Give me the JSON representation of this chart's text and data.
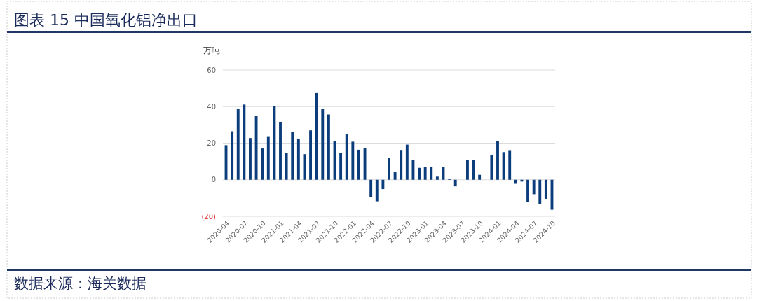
{
  "chart_data": {
    "type": "bar",
    "title": "图表 15 中国氧化铝净出口",
    "ylabel": "万吨",
    "annotations": [
      "数据来源：海关数据"
    ],
    "categories": [
      "2020-04",
      null,
      null,
      "2020-07",
      null,
      null,
      "2020-10",
      null,
      null,
      "2021-01",
      null,
      null,
      "2021-04",
      null,
      null,
      "2021-07",
      null,
      null,
      "2021-10",
      null,
      null,
      "2022-01",
      null,
      null,
      "2022-04",
      null,
      null,
      "2022-07",
      null,
      null,
      "2022-10",
      null,
      null,
      "2023-01",
      null,
      null,
      "2023-04",
      null,
      null,
      "2023-07",
      null,
      null,
      "2023-10",
      null,
      null,
      "2024-01",
      null,
      null,
      "2024-04",
      null,
      null,
      "2024-07",
      null,
      null,
      "2024-10"
    ],
    "values": [
      18.9,
      26.5,
      38.9,
      41.1,
      22.8,
      34.9,
      17.1,
      23.8,
      40.1,
      31.7,
      14.8,
      26.2,
      22.5,
      14.0,
      27.0,
      47.4,
      38.6,
      35.7,
      21.1,
      14.8,
      25.0,
      20.8,
      16.4,
      17.5,
      -9.3,
      -11.8,
      -5.1,
      12.1,
      4.1,
      16.3,
      19.2,
      11.0,
      6.5,
      6.9,
      6.8,
      1.7,
      6.8,
      0.5,
      -3.6,
      null,
      10.8,
      10.8,
      2.7,
      null,
      13.7,
      21.2,
      15.1,
      16.2,
      -2.2,
      -1.0,
      -12.3,
      -7.9,
      -13.5,
      -10.4,
      -16.4
    ],
    "color": "#0b3d7c",
    "ylim": [
      -20,
      60
    ],
    "yticks": [
      {
        "value": -20,
        "label": "(20)"
      },
      0,
      20,
      40,
      60
    ],
    "grid": "y"
  }
}
